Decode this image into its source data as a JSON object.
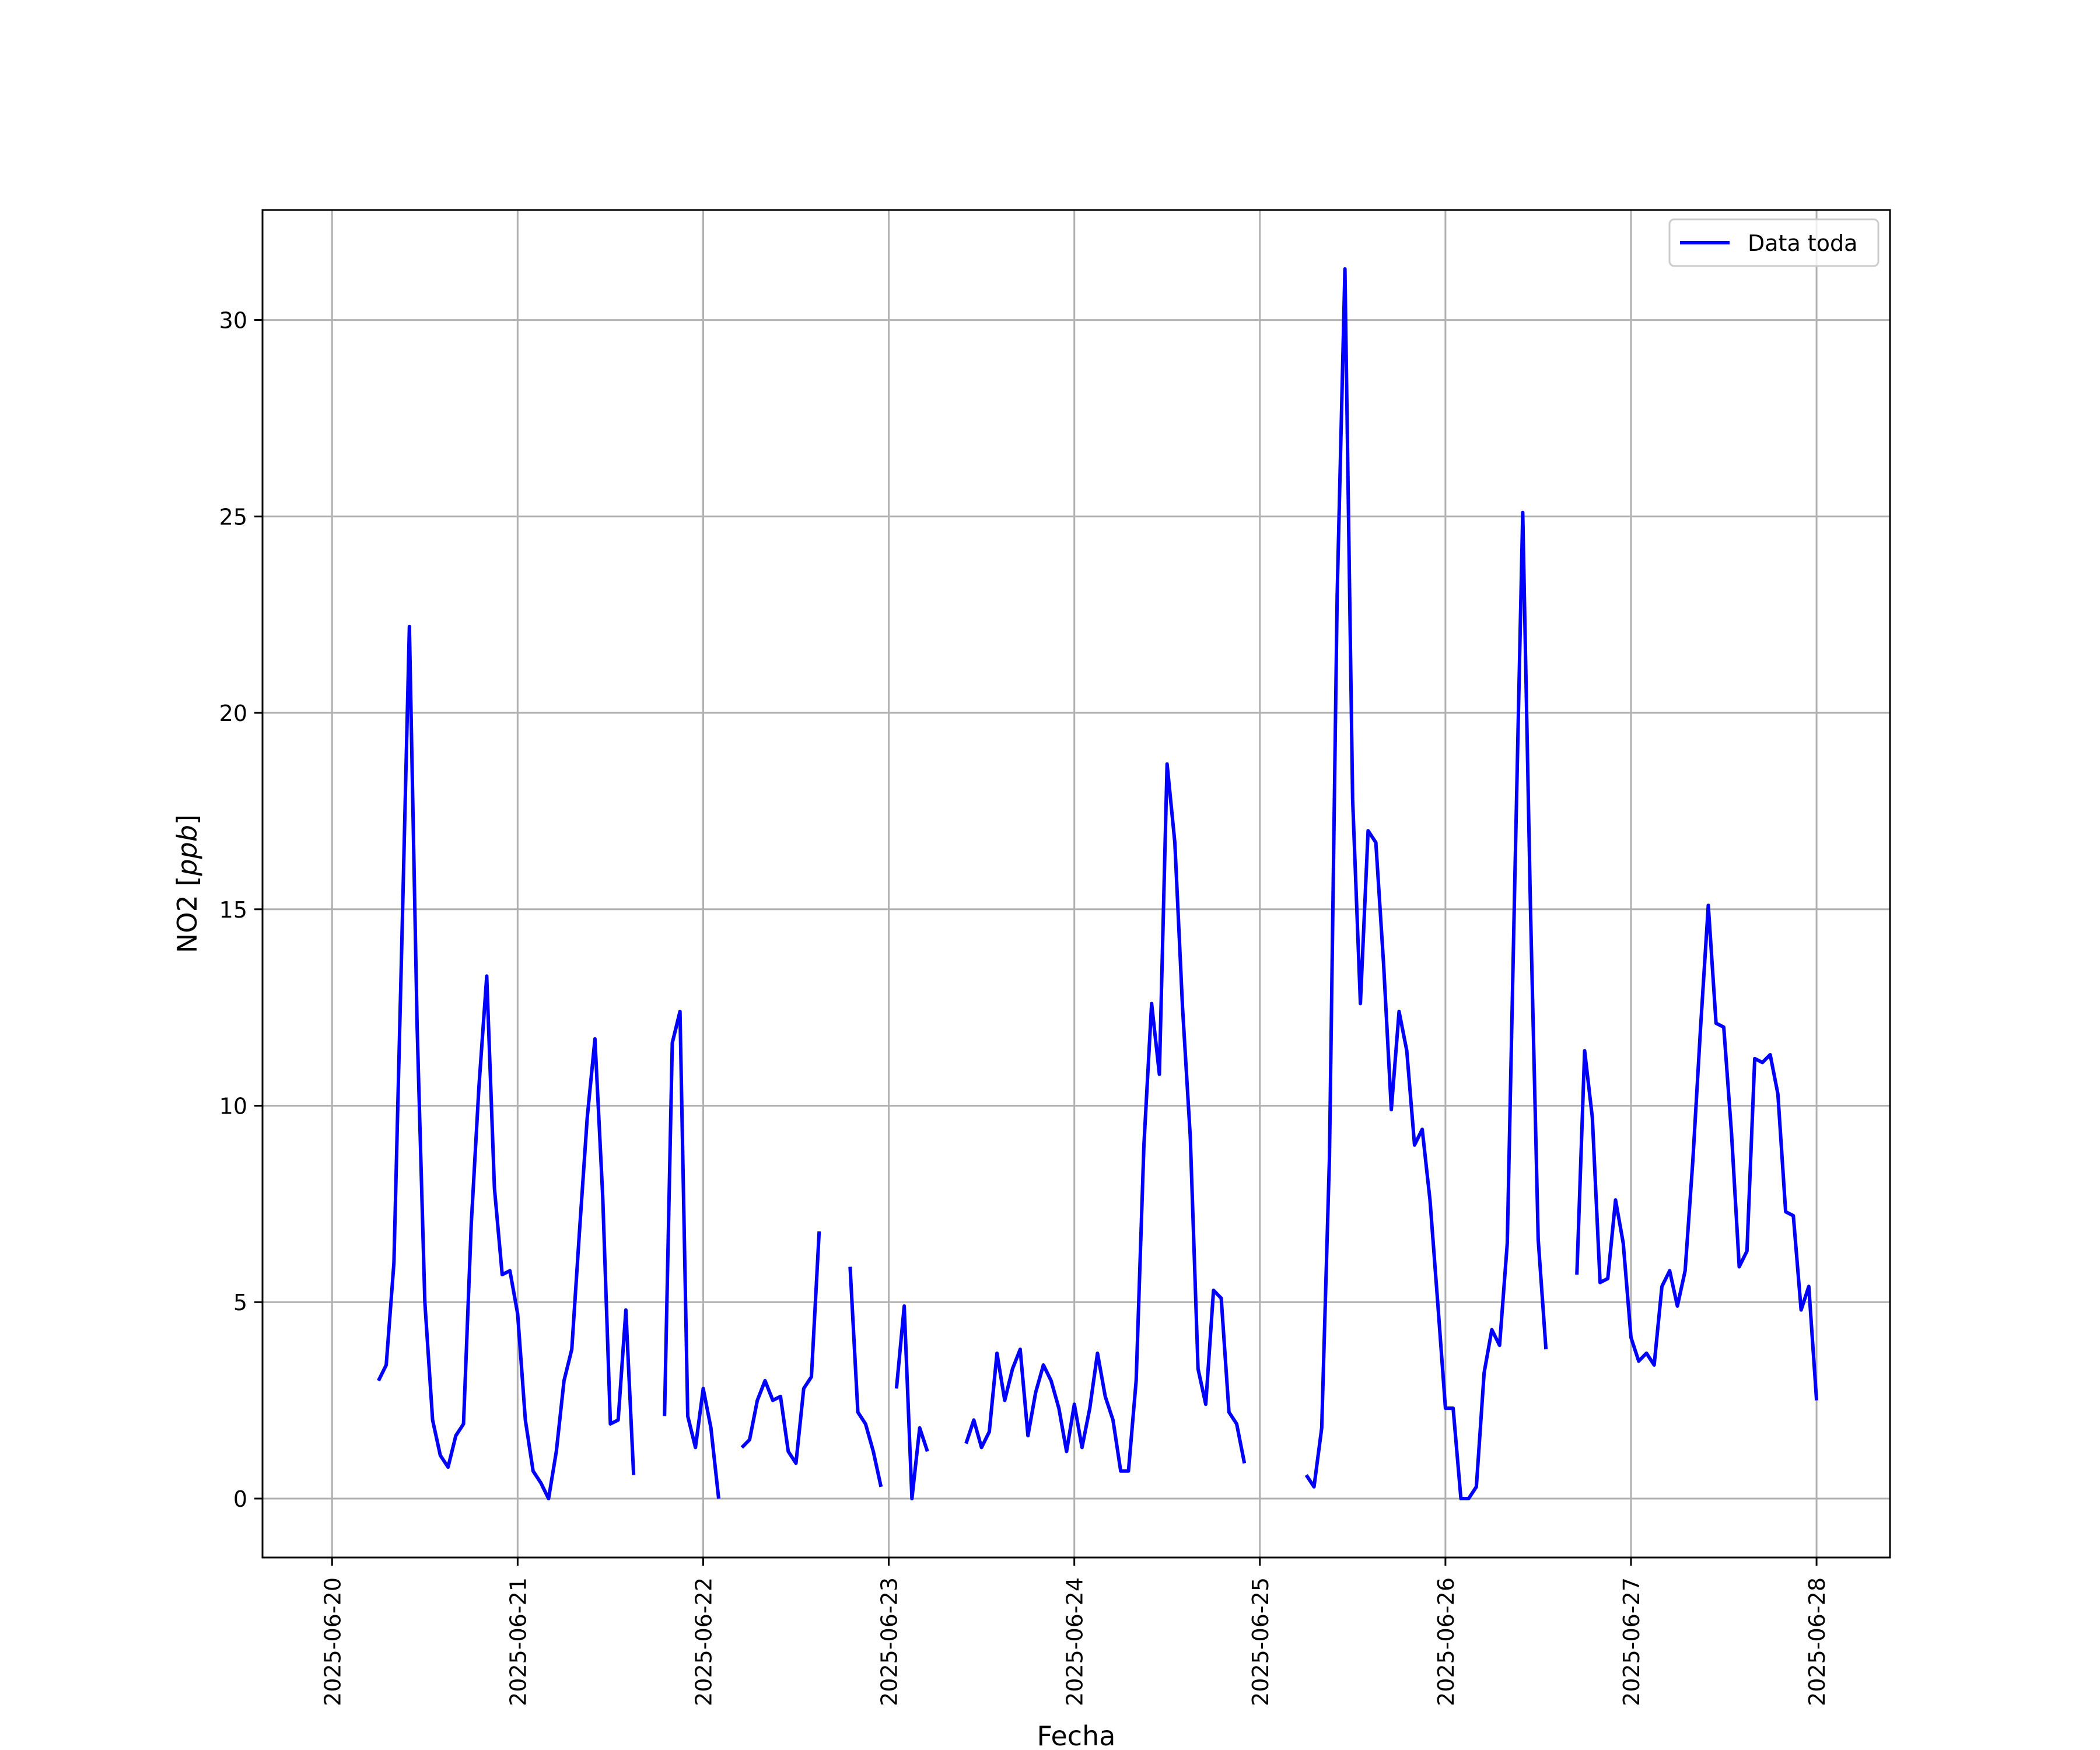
{
  "chart_data": {
    "type": "line",
    "title": "",
    "xlabel": "Fecha",
    "ylabel": "NO2 [ppb]",
    "ylabel_main": "NO2 ",
    "ylabel_unit": "ppb",
    "xlim": [
      "2025-06-19 15:00",
      "2025-06-28 09:30"
    ],
    "ylim": [
      -1.5,
      32.8
    ],
    "x_ticks": [
      "2025-06-20",
      "2025-06-21",
      "2025-06-22",
      "2025-06-23",
      "2025-06-24",
      "2025-06-25",
      "2025-06-26",
      "2025-06-27",
      "2025-06-28"
    ],
    "y_ticks": [
      0,
      5,
      10,
      15,
      20,
      25,
      30
    ],
    "y_tick_labels": [
      "0",
      "5",
      "10",
      "15",
      "20",
      "25",
      "30"
    ],
    "grid": true,
    "legend": {
      "position": "top-right",
      "entries": [
        "Data toda"
      ]
    },
    "series": [
      {
        "name": "Data toda",
        "color": "#0000ff",
        "segments": [
          [
            [
              "2025-06-20 06:00",
              3.0
            ],
            [
              "2025-06-20 07:00",
              3.4
            ],
            [
              "2025-06-20 08:00",
              6.0
            ],
            [
              "2025-06-20 09:00",
              14.0
            ],
            [
              "2025-06-20 10:00",
              22.2
            ],
            [
              "2025-06-20 11:00",
              12.0
            ],
            [
              "2025-06-20 12:00",
              5.0
            ],
            [
              "2025-06-20 13:00",
              2.0
            ],
            [
              "2025-06-20 14:00",
              1.1
            ],
            [
              "2025-06-20 15:00",
              0.8
            ],
            [
              "2025-06-20 16:00",
              1.6
            ],
            [
              "2025-06-20 17:00",
              1.9
            ],
            [
              "2025-06-20 18:00",
              7.0
            ],
            [
              "2025-06-20 19:00",
              10.5
            ],
            [
              "2025-06-20 20:00",
              13.3
            ],
            [
              "2025-06-20 21:00",
              7.9
            ],
            [
              "2025-06-20 22:00",
              5.7
            ],
            [
              "2025-06-20 23:00",
              5.8
            ],
            [
              "2025-06-21 00:00",
              4.7
            ],
            [
              "2025-06-21 01:00",
              2.0
            ],
            [
              "2025-06-21 02:00",
              0.7
            ],
            [
              "2025-06-21 03:00",
              0.4
            ],
            [
              "2025-06-21 04:00",
              0.0
            ],
            [
              "2025-06-21 05:00",
              1.2
            ],
            [
              "2025-06-21 06:00",
              3.0
            ],
            [
              "2025-06-21 07:00",
              3.8
            ],
            [
              "2025-06-21 08:00",
              6.8
            ],
            [
              "2025-06-21 09:00",
              9.7
            ],
            [
              "2025-06-21 10:00",
              11.7
            ],
            [
              "2025-06-21 11:00",
              7.7
            ],
            [
              "2025-06-21 12:00",
              1.9
            ],
            [
              "2025-06-21 13:00",
              2.0
            ],
            [
              "2025-06-21 14:00",
              4.8
            ],
            [
              "2025-06-21 15:00",
              0.6
            ]
          ],
          [
            [
              "2025-06-21 19:00",
              2.1
            ],
            [
              "2025-06-21 20:00",
              11.6
            ],
            [
              "2025-06-21 21:00",
              12.4
            ],
            [
              "2025-06-21 22:00",
              2.1
            ],
            [
              "2025-06-21 23:00",
              1.3
            ],
            [
              "2025-06-22 00:00",
              2.8
            ],
            [
              "2025-06-22 01:00",
              1.8
            ],
            [
              "2025-06-22 02:00",
              0.0
            ]
          ],
          [
            [
              "2025-06-22 05:00",
              1.3
            ],
            [
              "2025-06-22 06:00",
              1.5
            ],
            [
              "2025-06-22 07:00",
              2.5
            ],
            [
              "2025-06-22 08:00",
              3.0
            ],
            [
              "2025-06-22 09:00",
              2.5
            ],
            [
              "2025-06-22 10:00",
              2.6
            ],
            [
              "2025-06-22 11:00",
              1.2
            ],
            [
              "2025-06-22 12:00",
              0.9
            ],
            [
              "2025-06-22 13:00",
              2.8
            ],
            [
              "2025-06-22 14:00",
              3.1
            ],
            [
              "2025-06-22 15:00",
              6.8
            ]
          ],
          [
            [
              "2025-06-22 19:00",
              5.9
            ],
            [
              "2025-06-22 20:00",
              2.2
            ],
            [
              "2025-06-22 21:00",
              1.9
            ],
            [
              "2025-06-22 22:00",
              1.2
            ],
            [
              "2025-06-22 23:00",
              0.3
            ]
          ],
          [
            [
              "2025-06-23 01:00",
              2.8
            ],
            [
              "2025-06-23 02:00",
              4.9
            ],
            [
              "2025-06-23 03:00",
              0.0
            ],
            [
              "2025-06-23 04:00",
              1.8
            ],
            [
              "2025-06-23 05:00",
              1.2
            ]
          ],
          [
            [
              "2025-06-23 10:00",
              1.4
            ],
            [
              "2025-06-23 11:00",
              2.0
            ],
            [
              "2025-06-23 12:00",
              1.3
            ],
            [
              "2025-06-23 13:00",
              1.7
            ],
            [
              "2025-06-23 14:00",
              3.7
            ],
            [
              "2025-06-23 15:00",
              2.5
            ],
            [
              "2025-06-23 16:00",
              3.3
            ],
            [
              "2025-06-23 17:00",
              3.8
            ],
            [
              "2025-06-23 18:00",
              1.6
            ],
            [
              "2025-06-23 19:00",
              2.7
            ],
            [
              "2025-06-23 20:00",
              3.4
            ],
            [
              "2025-06-23 21:00",
              3.0
            ],
            [
              "2025-06-23 22:00",
              2.3
            ],
            [
              "2025-06-23 23:00",
              1.2
            ],
            [
              "2025-06-24 00:00",
              2.4
            ],
            [
              "2025-06-24 01:00",
              1.3
            ],
            [
              "2025-06-24 02:00",
              2.3
            ],
            [
              "2025-06-24 03:00",
              3.7
            ],
            [
              "2025-06-24 04:00",
              2.6
            ],
            [
              "2025-06-24 05:00",
              2.0
            ],
            [
              "2025-06-24 06:00",
              0.7
            ],
            [
              "2025-06-24 07:00",
              0.7
            ],
            [
              "2025-06-24 08:00",
              3.0
            ],
            [
              "2025-06-24 09:00",
              9.0
            ],
            [
              "2025-06-24 10:00",
              12.6
            ],
            [
              "2025-06-24 11:00",
              10.8
            ],
            [
              "2025-06-24 12:00",
              18.7
            ],
            [
              "2025-06-24 13:00",
              16.7
            ],
            [
              "2025-06-24 14:00",
              12.5
            ],
            [
              "2025-06-24 15:00",
              9.2
            ],
            [
              "2025-06-24 16:00",
              3.3
            ],
            [
              "2025-06-24 17:00",
              2.4
            ],
            [
              "2025-06-24 18:00",
              5.3
            ],
            [
              "2025-06-24 19:00",
              5.1
            ],
            [
              "2025-06-24 20:00",
              2.2
            ],
            [
              "2025-06-24 21:00",
              1.9
            ],
            [
              "2025-06-24 22:00",
              0.9
            ]
          ],
          [
            [
              "2025-06-25 06:00",
              0.6
            ],
            [
              "2025-06-25 07:00",
              0.3
            ],
            [
              "2025-06-25 08:00",
              1.8
            ],
            [
              "2025-06-25 09:00",
              8.7
            ],
            [
              "2025-06-25 10:00",
              23.0
            ],
            [
              "2025-06-25 11:00",
              31.3
            ],
            [
              "2025-06-25 12:00",
              17.8
            ],
            [
              "2025-06-25 13:00",
              12.6
            ],
            [
              "2025-06-25 14:00",
              17.0
            ],
            [
              "2025-06-25 15:00",
              16.7
            ],
            [
              "2025-06-25 16:00",
              13.6
            ],
            [
              "2025-06-25 17:00",
              9.9
            ],
            [
              "2025-06-25 18:00",
              12.4
            ],
            [
              "2025-06-25 19:00",
              11.4
            ],
            [
              "2025-06-25 20:00",
              9.0
            ],
            [
              "2025-06-25 21:00",
              9.4
            ],
            [
              "2025-06-25 22:00",
              7.6
            ],
            [
              "2025-06-25 23:00",
              5.0
            ],
            [
              "2025-06-26 00:00",
              2.3
            ],
            [
              "2025-06-26 01:00",
              2.3
            ],
            [
              "2025-06-26 02:00",
              0.0
            ],
            [
              "2025-06-26 03:00",
              0.0
            ],
            [
              "2025-06-26 04:00",
              0.3
            ],
            [
              "2025-06-26 05:00",
              3.2
            ],
            [
              "2025-06-26 06:00",
              4.3
            ],
            [
              "2025-06-26 07:00",
              3.9
            ],
            [
              "2025-06-26 08:00",
              6.5
            ],
            [
              "2025-06-26 09:00",
              16.0
            ],
            [
              "2025-06-26 10:00",
              25.1
            ],
            [
              "2025-06-26 11:00",
              15.0
            ],
            [
              "2025-06-26 12:00",
              6.6
            ],
            [
              "2025-06-26 13:00",
              3.8
            ]
          ],
          [
            [
              "2025-06-26 17:00",
              5.7
            ],
            [
              "2025-06-26 18:00",
              11.4
            ],
            [
              "2025-06-26 19:00",
              9.7
            ],
            [
              "2025-06-26 20:00",
              5.5
            ],
            [
              "2025-06-26 21:00",
              5.6
            ],
            [
              "2025-06-26 22:00",
              7.6
            ],
            [
              "2025-06-26 23:00",
              6.5
            ],
            [
              "2025-06-27 00:00",
              4.1
            ],
            [
              "2025-06-27 01:00",
              3.5
            ],
            [
              "2025-06-27 02:00",
              3.7
            ],
            [
              "2025-06-27 03:00",
              3.4
            ],
            [
              "2025-06-27 04:00",
              5.4
            ],
            [
              "2025-06-27 05:00",
              5.8
            ],
            [
              "2025-06-27 06:00",
              4.9
            ],
            [
              "2025-06-27 07:00",
              5.8
            ],
            [
              "2025-06-27 08:00",
              8.6
            ],
            [
              "2025-06-27 09:00",
              12.0
            ],
            [
              "2025-06-27 10:00",
              15.1
            ],
            [
              "2025-06-27 11:00",
              12.1
            ],
            [
              "2025-06-27 12:00",
              12.0
            ],
            [
              "2025-06-27 13:00",
              9.3
            ],
            [
              "2025-06-27 14:00",
              5.9
            ],
            [
              "2025-06-27 15:00",
              6.3
            ],
            [
              "2025-06-27 16:00",
              11.2
            ],
            [
              "2025-06-27 17:00",
              11.1
            ],
            [
              "2025-06-27 18:00",
              11.3
            ],
            [
              "2025-06-27 19:00",
              10.3
            ],
            [
              "2025-06-27 20:00",
              7.3
            ],
            [
              "2025-06-27 21:00",
              7.2
            ],
            [
              "2025-06-27 22:00",
              4.8
            ],
            [
              "2025-06-27 23:00",
              5.4
            ],
            [
              "2025-06-28 00:00",
              2.5
            ]
          ]
        ]
      }
    ]
  }
}
